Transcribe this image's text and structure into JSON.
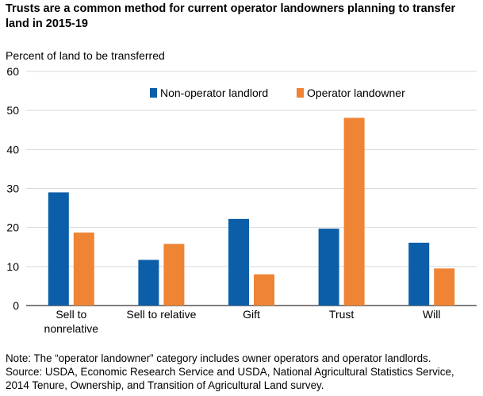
{
  "header": {
    "title": "Trusts are a common method for current operator landowners planning to transfer land in 2015-19"
  },
  "chart_data": {
    "type": "bar",
    "title": "Trusts are a common method for current operator landowners planning to transfer land in 2015-19",
    "ylabel": "Percent of land to be transferred",
    "xlabel": "",
    "ylim": [
      0,
      60
    ],
    "yticks": [
      0,
      10,
      20,
      30,
      40,
      50,
      60
    ],
    "grid": true,
    "legend_position": "top",
    "categories": [
      [
        "Sell to",
        "nonrelative"
      ],
      [
        "Sell to relative"
      ],
      [
        "Gift"
      ],
      [
        "Trust"
      ],
      [
        "Will"
      ]
    ],
    "series": [
      {
        "name": "Non-operator landlord",
        "color": "#0c5ea8",
        "values": [
          29.0,
          11.7,
          22.2,
          19.7,
          16.1
        ]
      },
      {
        "name": "Operator landowner",
        "color": "#ee8434",
        "values": [
          18.7,
          15.8,
          8.0,
          48.1,
          9.5
        ]
      }
    ]
  },
  "footer": {
    "note": "Note: The “operator landowner” category includes owner operators and operator landlords.",
    "source_line1": "Source: USDA, Economic Research Service and USDA, National Agricultural Statistics Service,",
    "source_line2": "2014 Tenure, Ownership, and Transition of Agricultural Land survey."
  }
}
